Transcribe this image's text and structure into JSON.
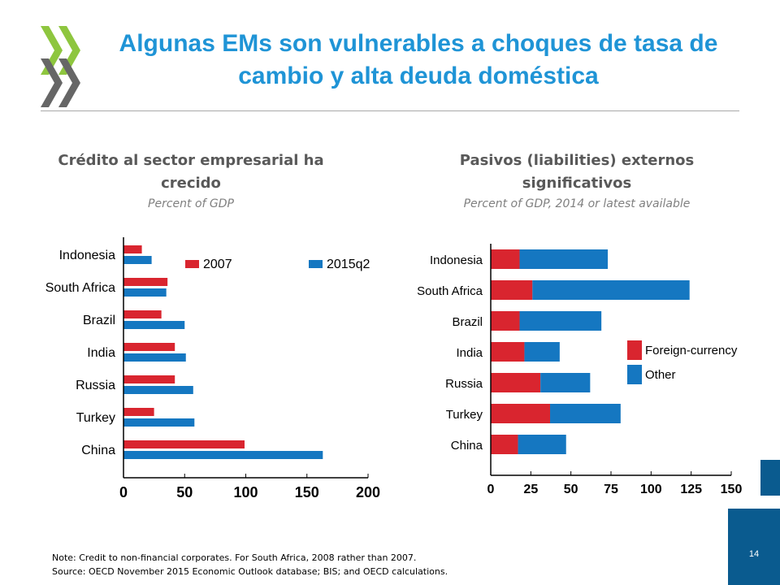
{
  "slide": {
    "title": "Algunas EMs son vulnerables a choques de tasa de cambio y alta deuda doméstica",
    "page_number": "14",
    "colors": {
      "title": "#1f94d6",
      "red": "#d9252f",
      "blue": "#1577c1",
      "logo": "#8ec63f"
    }
  },
  "left": {
    "heading": "Crédito al sector empresarial ha crecido",
    "units": "Percent of GDP"
  },
  "right": {
    "heading": "Pasivos (liabilities) externos significativos",
    "units": "Percent of GDP, 2014 or latest available"
  },
  "notes": {
    "note": "Note: Credit to non-financial corporates. For South Africa, 2008 rather than 2007.",
    "source": "Source: OECD November 2015 Economic Outlook database; BIS; and OECD calculations."
  },
  "chart_data": [
    {
      "type": "bar",
      "orientation": "horizontal",
      "categories": [
        "Indonesia",
        "South Africa",
        "Brazil",
        "India",
        "Russia",
        "Turkey",
        "China"
      ],
      "series": [
        {
          "name": "2007",
          "color": "#d9252f",
          "values": [
            15,
            36,
            31,
            42,
            42,
            25,
            99
          ]
        },
        {
          "name": "2015q2",
          "color": "#1577c1",
          "values": [
            23,
            35,
            50,
            51,
            57,
            58,
            163
          ]
        }
      ],
      "xlim": [
        0,
        200
      ],
      "xticks": [
        "0",
        "50",
        "100",
        "150",
        "200"
      ],
      "legend": "top"
    },
    {
      "type": "bar",
      "orientation": "horizontal",
      "stacked": true,
      "categories": [
        "Indonesia",
        "South Africa",
        "Brazil",
        "India",
        "Russia",
        "Turkey",
        "China"
      ],
      "series": [
        {
          "name": "Foreign-currency",
          "color": "#d9252f",
          "values": [
            18,
            26,
            18,
            21,
            31,
            37,
            17
          ]
        },
        {
          "name": "Other",
          "color": "#1577c1",
          "values": [
            55,
            98,
            51,
            22,
            31,
            44,
            30
          ]
        }
      ],
      "xlim": [
        0,
        150
      ],
      "xticks": [
        "0",
        "25",
        "50",
        "75",
        "100",
        "125",
        "150"
      ],
      "legend": "right"
    }
  ]
}
